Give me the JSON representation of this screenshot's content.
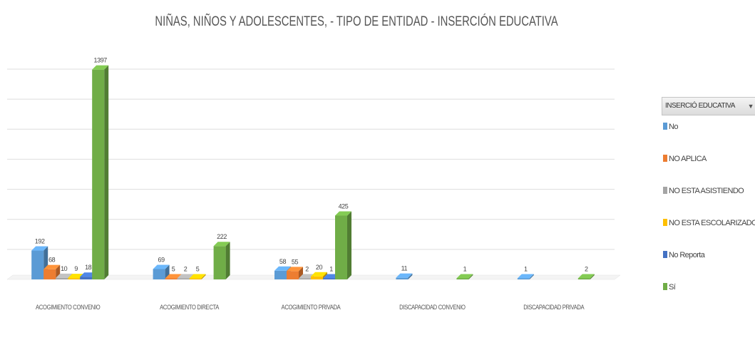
{
  "chart_data": {
    "type": "bar",
    "title": "NIÑAS, NIÑOS Y ADOLESCENTES, - TIPO DE ENTIDAD - INSERCIÓN EDUCATIVA",
    "xlabel": "",
    "ylabel": "",
    "ylim": [
      0,
      1400
    ],
    "grid": true,
    "legend_position": "right",
    "legend_header": "INSERCIÓ EDUCATIVA",
    "categories": [
      "ACOGIMIENTO CONVENIO",
      "ACOGIMIENTO DIRECTA",
      "ACOGIMIENTO PRIVADA",
      "DISCAPACIDAD CONVENIO",
      "DISCAPACIDAD PRIVADA"
    ],
    "series": [
      {
        "name": "No",
        "color": "#5B9BD5",
        "values": [
          192,
          69,
          58,
          11,
          1
        ],
        "labels": [
          "192",
          "69",
          "58",
          "11",
          "1"
        ]
      },
      {
        "name": "NO APLICA",
        "color": "#ED7D31",
        "values": [
          68,
          5,
          55,
          null,
          null
        ],
        "labels": [
          "68",
          "5",
          "55",
          "",
          ""
        ]
      },
      {
        "name": "NO ESTA ASISTIENDO",
        "color": "#A5A5A5",
        "values": [
          10,
          2,
          2,
          null,
          null
        ],
        "labels": [
          "10",
          "2",
          "2",
          "",
          ""
        ]
      },
      {
        "name": "NO ESTA ESCOLARIZADO",
        "color": "#FFC000",
        "values": [
          9,
          5,
          20,
          null,
          null
        ],
        "labels": [
          "9",
          "5",
          "20",
          "",
          ""
        ]
      },
      {
        "name": "No Reporta",
        "color": "#4472C4",
        "values": [
          18,
          null,
          1,
          null,
          null
        ],
        "labels": [
          "18",
          "",
          "1",
          "",
          ""
        ]
      },
      {
        "name": "Sí",
        "color": "#70AD47",
        "values": [
          1397,
          222,
          425,
          1,
          2
        ],
        "labels": [
          "1397",
          "222",
          "425",
          "1",
          "2"
        ]
      }
    ]
  }
}
